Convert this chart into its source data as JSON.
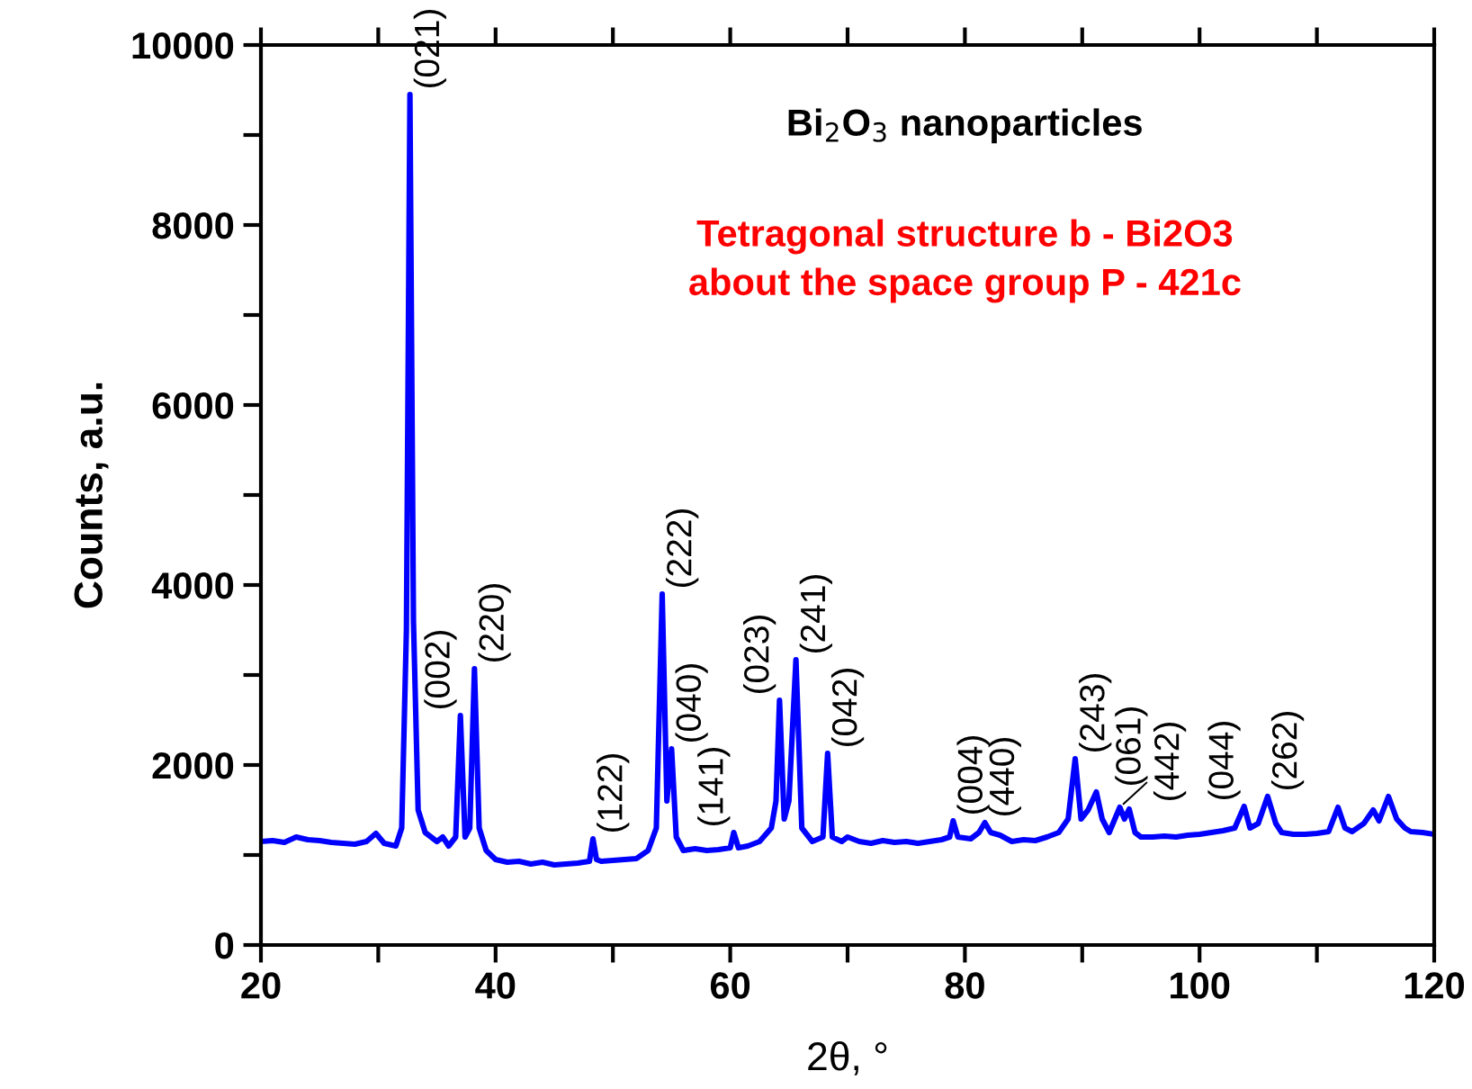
{
  "chart_data": {
    "type": "line",
    "title": "Bi$_{2}$O$_{3}$ nanoparticles",
    "xlabel": "2θ, °",
    "ylabel": "Counts, a.u.",
    "x": [
      20,
      21,
      22,
      23,
      24,
      25,
      26,
      27,
      28,
      29,
      29.8,
      30.5,
      31.5,
      32.0,
      32.4,
      32.7,
      33.0,
      33.4,
      34,
      35,
      35.5,
      36,
      36.6,
      37.0,
      37.4,
      37.8,
      38.2,
      38.6,
      39.2,
      40,
      41,
      42,
      43,
      44,
      45,
      46,
      47,
      48,
      48.3,
      48.6,
      49,
      50,
      51,
      52,
      53,
      53.7,
      54.2,
      54.6,
      55.0,
      55.4,
      56,
      57,
      58,
      59,
      60,
      60.3,
      60.7,
      61.5,
      62.5,
      63.5,
      63.9,
      64.2,
      64.6,
      65.0,
      65.6,
      66.1,
      67,
      67.9,
      68.3,
      68.7,
      69.5,
      70,
      71,
      72,
      73,
      74,
      75,
      76,
      77,
      78,
      78.7,
      79.0,
      79.4,
      80.5,
      81.2,
      81.7,
      82.2,
      83,
      84,
      85,
      86,
      87,
      88,
      88.8,
      89.4,
      89.9,
      90.5,
      91.2,
      91.7,
      92.3,
      93.2,
      93.6,
      94.0,
      94.5,
      95,
      96,
      97,
      98,
      99,
      100,
      101,
      102,
      103,
      103.8,
      104.3,
      105,
      105.8,
      106.5,
      107,
      108,
      109,
      110,
      111,
      111.8,
      112.4,
      113,
      114,
      114.8,
      115.3,
      116.1,
      116.8,
      117.5,
      118,
      119,
      120
    ],
    "series": [
      {
        "color": "#0000ff",
        "values": [
          1150,
          1160,
          1140,
          1200,
          1170,
          1160,
          1140,
          1130,
          1120,
          1150,
          1240,
          1130,
          1100,
          1300,
          3500,
          9450,
          3600,
          1500,
          1250,
          1150,
          1200,
          1100,
          1200,
          2550,
          1200,
          1300,
          3070,
          1300,
          1050,
          950,
          920,
          930,
          900,
          920,
          890,
          900,
          910,
          930,
          1180,
          950,
          930,
          940,
          950,
          960,
          1050,
          1300,
          3900,
          1600,
          2180,
          1200,
          1050,
          1070,
          1050,
          1060,
          1080,
          1250,
          1080,
          1100,
          1150,
          1300,
          1600,
          2720,
          1400,
          1600,
          3170,
          1300,
          1150,
          1200,
          2130,
          1200,
          1150,
          1200,
          1150,
          1130,
          1160,
          1140,
          1150,
          1130,
          1150,
          1170,
          1200,
          1380,
          1200,
          1180,
          1250,
          1360,
          1250,
          1220,
          1150,
          1170,
          1160,
          1200,
          1250,
          1400,
          2070,
          1400,
          1500,
          1700,
          1400,
          1250,
          1530,
          1400,
          1510,
          1250,
          1200,
          1200,
          1210,
          1200,
          1220,
          1230,
          1250,
          1270,
          1300,
          1540,
          1300,
          1350,
          1650,
          1350,
          1250,
          1230,
          1230,
          1240,
          1260,
          1530,
          1300,
          1260,
          1350,
          1500,
          1380,
          1650,
          1400,
          1300,
          1260,
          1250,
          1230
        ]
      }
    ],
    "xlim": [
      20,
      120
    ],
    "xticks": [
      20,
      {
        "value": 30,
        "label": null
      },
      40,
      {
        "value": 50,
        "label": null
      },
      60,
      {
        "value": 70,
        "label": null
      },
      80,
      {
        "value": 90,
        "label": null
      },
      100,
      {
        "value": 110,
        "label": null
      },
      120
    ],
    "ylim": [
      0,
      10000
    ],
    "yticks": [
      0,
      {
        "value": 1000,
        "label": null
      },
      2000,
      {
        "value": 3000,
        "label": null
      },
      4000,
      {
        "value": 5000,
        "label": null
      },
      6000,
      {
        "value": 7000,
        "label": null
      },
      8000,
      {
        "value": 9000,
        "label": null
      },
      10000
    ],
    "grid": false,
    "marker": "none",
    "line_style": "solid",
    "annotations": [
      {
        "text": "(021)",
        "x": 32.7,
        "y": 9450
      },
      {
        "text": "(002)",
        "x": 37.0,
        "y": 2550
      },
      {
        "text": "(220)",
        "x": 38.2,
        "y": 3070
      },
      {
        "text": "(122)",
        "x": 48.3,
        "y": 1180
      },
      {
        "text": "(222)",
        "x": 54.2,
        "y": 3900
      },
      {
        "text": "(040)",
        "x": 55.0,
        "y": 2180
      },
      {
        "text": "(141)",
        "x": 60.3,
        "y": 1250
      },
      {
        "text": "(023)",
        "x": 64.2,
        "y": 2720
      },
      {
        "text": "(241)",
        "x": 65.6,
        "y": 3170
      },
      {
        "text": "(042)",
        "x": 68.3,
        "y": 2130
      },
      {
        "text": "(004)",
        "x": 79.0,
        "y": 1380
      },
      {
        "text": "(440)",
        "x": 81.7,
        "y": 1360
      },
      {
        "text": "(243)",
        "x": 89.4,
        "y": 2070
      },
      {
        "text": "(061)",
        "x": 91.2,
        "y": 1700
      },
      {
        "text": "(442)",
        "x": 93.2,
        "y": 1530
      },
      {
        "text": "(044)",
        "x": 103.8,
        "y": 1540
      },
      {
        "text": "(262)",
        "x": 105.8,
        "y": 1650
      },
      "Tetragonal structure b - Bi2O3\nabout the space group P - 421c"
    ]
  }
}
